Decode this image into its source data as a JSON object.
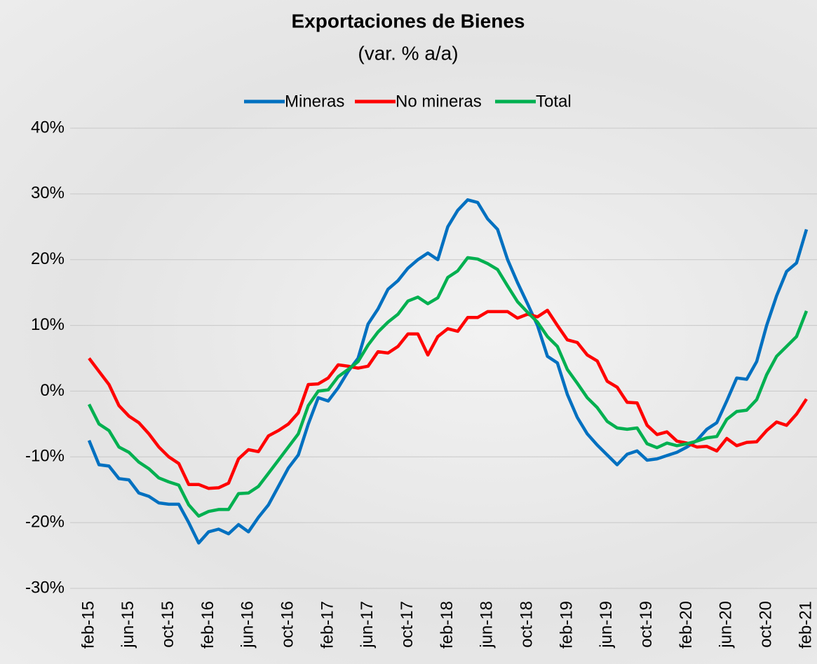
{
  "chart_data": {
    "type": "line",
    "title": "Exportaciones de Bienes",
    "subtitle": "(var. % a/a)",
    "categories": [
      "feb-15",
      null,
      null,
      null,
      "jun-15",
      null,
      null,
      null,
      "oct-15",
      null,
      null,
      null,
      "feb-16",
      null,
      null,
      null,
      "jun-16",
      null,
      null,
      null,
      "oct-16",
      null,
      null,
      null,
      "feb-17",
      null,
      null,
      null,
      "jun-17",
      null,
      null,
      null,
      "oct-17",
      null,
      null,
      null,
      "feb-18",
      null,
      null,
      null,
      "jun-18",
      null,
      null,
      null,
      "oct-18",
      null,
      null,
      null,
      "feb-19",
      null,
      null,
      null,
      "jun-19",
      null,
      null,
      null,
      "oct-19",
      null,
      null,
      null,
      "feb-20",
      null,
      null,
      null,
      "jun-20",
      null,
      null,
      null,
      "oct-20",
      null,
      null,
      null,
      "feb-21"
    ],
    "series": [
      {
        "name": "Mineras",
        "color": "#0070c0",
        "values": [
          -7.5,
          -11.2,
          -11.4,
          -13.3,
          -13.5,
          -15.5,
          -16,
          -17,
          -17.2,
          -17.2,
          -20,
          -23.1,
          -21.4,
          -21,
          -21.7,
          -20.3,
          -21.4,
          -19.2,
          -17.3,
          -14.5,
          -11.7,
          -9.7,
          -5,
          -1,
          -1.5,
          0.5,
          3,
          5,
          10.2,
          12.5,
          15.5,
          16.8,
          18.7,
          20,
          21,
          20,
          25,
          27.5,
          29.1,
          28.7,
          26.2,
          24.6,
          20,
          16.5,
          13.3,
          10,
          5.3,
          4.3,
          -0.5,
          -4,
          -6.5,
          -8.2,
          -9.7,
          -11.2,
          -9.6,
          -9.1,
          -10.5,
          -10.3,
          -9.8,
          -9.3,
          -8.5,
          -7.5,
          -5.8,
          -4.8,
          -1.5,
          2,
          1.8,
          4.5,
          10,
          14.5,
          18.2,
          19.5,
          24.6
        ]
      },
      {
        "name": "No mineras",
        "color": "#ff0000",
        "values": [
          5,
          3,
          1,
          -2.2,
          -3.8,
          -4.8,
          -6.5,
          -8.5,
          -10,
          -11,
          -14.2,
          -14.2,
          -14.8,
          -14.7,
          -14,
          -10.3,
          -8.9,
          -9.2,
          -6.8,
          -6,
          -5,
          -3.3,
          1,
          1.1,
          2,
          4,
          3.8,
          3.5,
          3.8,
          6,
          5.8,
          6.8,
          8.7,
          8.7,
          5.5,
          8.3,
          9.5,
          9.1,
          11.2,
          11.2,
          12.1,
          12.1,
          12.1,
          11.1,
          11.7,
          11.3,
          12.3,
          10,
          7.8,
          7.4,
          5.5,
          4.6,
          1.5,
          0.6,
          -1.7,
          -1.8,
          -5.2,
          -6.6,
          -6.2,
          -7.6,
          -7.9,
          -8.5,
          -8.4,
          -9.1,
          -7.2,
          -8.3,
          -7.8,
          -7.7,
          -6,
          -4.7,
          -5.2,
          -3.5,
          -1.2
        ]
      },
      {
        "name": "Total",
        "color": "#00b050",
        "values": [
          -2,
          -5,
          -6,
          -8.5,
          -9.3,
          -10.8,
          -11.8,
          -13.2,
          -13.8,
          -14.3,
          -17.3,
          -19,
          -18.3,
          -18,
          -18,
          -15.6,
          -15.5,
          -14.5,
          -12.5,
          -10.5,
          -8.5,
          -6.5,
          -2.2,
          0,
          0.2,
          2.2,
          3.3,
          4.5,
          7,
          9,
          10.5,
          11.7,
          13.7,
          14.3,
          13.3,
          14.2,
          17.3,
          18.3,
          20.3,
          20.1,
          19.4,
          18.5,
          16,
          13.6,
          12,
          10.5,
          8.3,
          6.8,
          3.3,
          1.2,
          -1,
          -2.5,
          -4.6,
          -5.6,
          -5.8,
          -5.6,
          -8,
          -8.6,
          -7.9,
          -8.3,
          -8,
          -7.6,
          -7.1,
          -6.9,
          -4.3,
          -3.1,
          -2.9,
          -1.3,
          2.5,
          5.3,
          6.8,
          8.3,
          12.2
        ]
      }
    ],
    "ylim": [
      -30,
      40
    ],
    "yticks": [
      {
        "value": -30,
        "label": "-30%"
      },
      {
        "value": -20,
        "label": "-20%"
      },
      {
        "value": -10,
        "label": "-10%"
      },
      {
        "value": 0,
        "label": "0%"
      },
      {
        "value": 10,
        "label": "10%"
      },
      {
        "value": 20,
        "label": "20%"
      },
      {
        "value": 30,
        "label": "30%"
      },
      {
        "value": 40,
        "label": "40%"
      }
    ],
    "grid": true,
    "legend": "top"
  }
}
